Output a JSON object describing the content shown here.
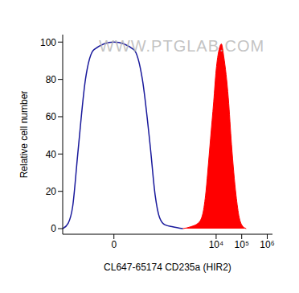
{
  "chart_data": {
    "type": "line",
    "x_label": "CL647-65174 CD235a (HIR2)",
    "y_label": "Relative cell number",
    "annotations": [
      "WWW.PTGLAB.COM"
    ],
    "log": "x",
    "xlim": [
      -100,
      1600000
    ],
    "xticks": [
      0,
      {
        "value": 10000,
        "label": "10⁴"
      },
      {
        "value": 100000,
        "label": "10⁵"
      },
      {
        "value": 1000000,
        "label": "10⁶"
      }
    ],
    "ylim": [
      -3,
      104
    ],
    "yticks": [
      0,
      20,
      40,
      60,
      80,
      100
    ],
    "grid": false,
    "series": [
      {
        "type": "line",
        "color": "#1a1a9c",
        "x": [
          -100,
          -60,
          -40,
          -25,
          -12,
          -5,
          0,
          5,
          12,
          25,
          40,
          60,
          100,
          200,
          500
        ],
        "values": [
          0,
          3,
          12,
          40,
          80,
          96,
          100,
          96,
          80,
          45,
          18,
          6,
          2,
          1,
          0
        ]
      },
      {
        "type": "area",
        "color": "#ff0000",
        "x": [
          500,
          1000,
          2000,
          3000,
          4000,
          5000,
          6000,
          8000,
          10000,
          13000,
          16000,
          20000,
          30000,
          40000,
          60000,
          80000,
          100000,
          150000
        ],
        "values": [
          0,
          1,
          3,
          8,
          20,
          35,
          48,
          68,
          85,
          96,
          99,
          92,
          70,
          45,
          18,
          6,
          2,
          0
        ]
      }
    ]
  }
}
